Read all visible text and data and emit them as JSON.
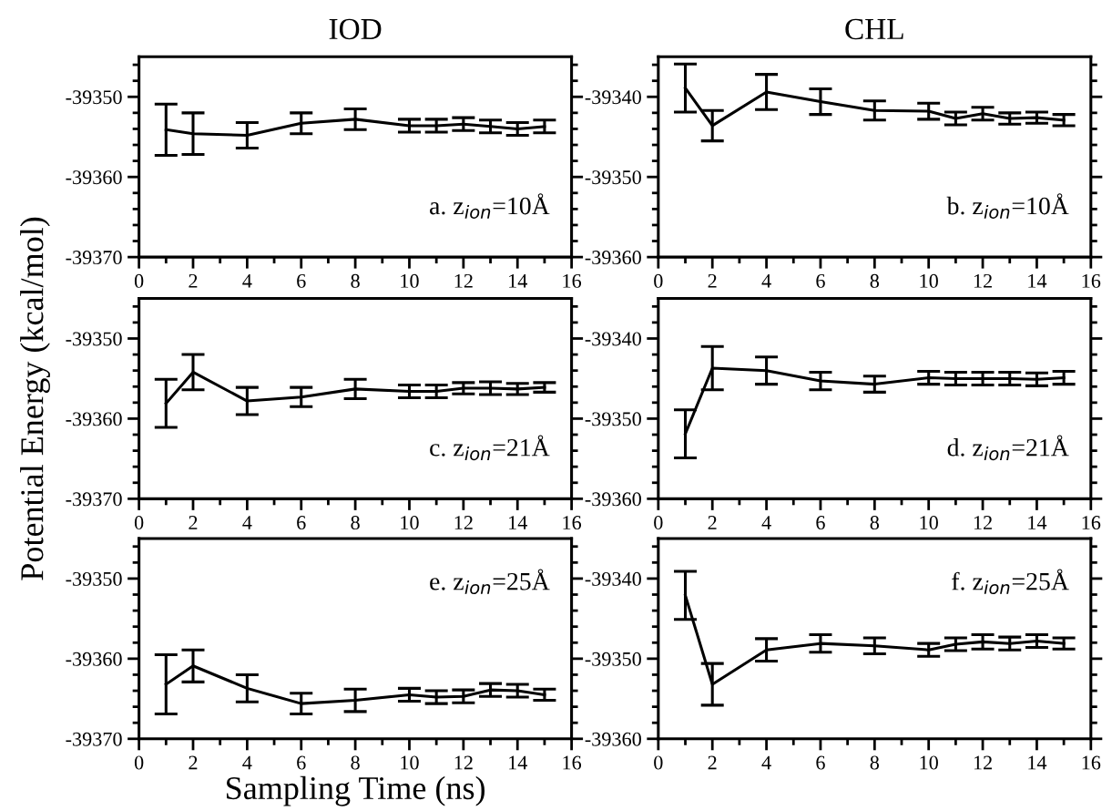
{
  "chart_data": [
    {
      "type": "line",
      "title": "IOD",
      "annotations": [
        "a. z$_{ion}$=10Å"
      ],
      "xlim": [
        0,
        16
      ],
      "ylim": [
        -39370,
        -39345
      ],
      "xticks": [
        0,
        {
          "value": 1,
          "label": null
        },
        2,
        {
          "value": 3,
          "label": null
        },
        4,
        {
          "value": 5,
          "label": null
        },
        6,
        {
          "value": 7,
          "label": null
        },
        8,
        {
          "value": 9,
          "label": null
        },
        10,
        {
          "value": 11,
          "label": null
        },
        12,
        {
          "value": 13,
          "label": null
        },
        14,
        {
          "value": 15,
          "label": null
        },
        16
      ],
      "yticks": [
        -39370,
        {
          "value": -39368,
          "label": null
        },
        {
          "value": -39366,
          "label": null
        },
        {
          "value": -39364,
          "label": null
        },
        {
          "value": -39362,
          "label": null
        },
        -39360,
        {
          "value": -39358,
          "label": null
        },
        {
          "value": -39356,
          "label": null
        },
        {
          "value": -39354,
          "label": null
        },
        {
          "value": -39352,
          "label": null
        },
        -39350,
        {
          "value": -39348,
          "label": null
        },
        {
          "value": -39346,
          "label": null
        }
      ],
      "grid": false,
      "legend": false,
      "marker": "none",
      "line_style": "solid",
      "x": [
        1,
        2,
        4,
        6,
        8,
        10,
        11,
        12,
        13,
        14,
        15
      ],
      "series": [
        {
          "color": "#000000",
          "values": [
            -39354.1,
            -39354.6,
            -39354.8,
            -39353.3,
            -39352.8,
            -39353.6,
            -39353.6,
            -39353.4,
            -39353.7,
            -39354.0,
            -39353.7
          ],
          "errors": [
            3.2,
            2.6,
            1.6,
            1.3,
            1.3,
            0.8,
            0.8,
            0.8,
            0.8,
            0.8,
            0.8
          ]
        }
      ]
    },
    {
      "type": "line",
      "title": "CHL",
      "annotations": [
        "b. z$_{ion}$=10Å"
      ],
      "xlim": [
        0,
        16
      ],
      "ylim": [
        -39360,
        -39335
      ],
      "xticks": [
        0,
        {
          "value": 1,
          "label": null
        },
        2,
        {
          "value": 3,
          "label": null
        },
        4,
        {
          "value": 5,
          "label": null
        },
        6,
        {
          "value": 7,
          "label": null
        },
        8,
        {
          "value": 9,
          "label": null
        },
        10,
        {
          "value": 11,
          "label": null
        },
        12,
        {
          "value": 13,
          "label": null
        },
        14,
        {
          "value": 15,
          "label": null
        },
        16
      ],
      "yticks": [
        -39360,
        {
          "value": -39358,
          "label": null
        },
        {
          "value": -39356,
          "label": null
        },
        {
          "value": -39354,
          "label": null
        },
        {
          "value": -39352,
          "label": null
        },
        -39350,
        {
          "value": -39348,
          "label": null
        },
        {
          "value": -39346,
          "label": null
        },
        {
          "value": -39344,
          "label": null
        },
        {
          "value": -39342,
          "label": null
        },
        -39340,
        {
          "value": -39338,
          "label": null
        },
        {
          "value": -39336,
          "label": null
        }
      ],
      "grid": false,
      "legend": false,
      "marker": "none",
      "line_style": "solid",
      "x": [
        1,
        2,
        4,
        6,
        8,
        10,
        11,
        12,
        13,
        14,
        15
      ],
      "series": [
        {
          "color": "#000000",
          "values": [
            -39338.9,
            -39343.6,
            -39339.4,
            -39340.6,
            -39341.7,
            -39341.8,
            -39342.7,
            -39342.1,
            -39342.7,
            -39342.6,
            -39342.9
          ],
          "errors": [
            3.0,
            1.9,
            2.2,
            1.6,
            1.2,
            1.0,
            0.8,
            0.8,
            0.7,
            0.7,
            0.7
          ]
        }
      ]
    },
    {
      "type": "line",
      "ylabel": "Potential Energy (kcal/mol)",
      "annotations": [
        "c. z$_{ion}$=21Å"
      ],
      "xlim": [
        0,
        16
      ],
      "ylim": [
        -39370,
        -39345
      ],
      "xticks": [
        0,
        {
          "value": 1,
          "label": null
        },
        2,
        {
          "value": 3,
          "label": null
        },
        4,
        {
          "value": 5,
          "label": null
        },
        6,
        {
          "value": 7,
          "label": null
        },
        8,
        {
          "value": 9,
          "label": null
        },
        10,
        {
          "value": 11,
          "label": null
        },
        12,
        {
          "value": 13,
          "label": null
        },
        14,
        {
          "value": 15,
          "label": null
        },
        16
      ],
      "yticks": [
        -39370,
        {
          "value": -39368,
          "label": null
        },
        {
          "value": -39366,
          "label": null
        },
        {
          "value": -39364,
          "label": null
        },
        {
          "value": -39362,
          "label": null
        },
        -39360,
        {
          "value": -39358,
          "label": null
        },
        {
          "value": -39356,
          "label": null
        },
        {
          "value": -39354,
          "label": null
        },
        {
          "value": -39352,
          "label": null
        },
        -39350,
        {
          "value": -39348,
          "label": null
        },
        {
          "value": -39346,
          "label": null
        }
      ],
      "grid": false,
      "legend": false,
      "marker": "none",
      "line_style": "solid",
      "x": [
        1,
        2,
        4,
        6,
        8,
        10,
        11,
        12,
        13,
        14,
        15
      ],
      "series": [
        {
          "color": "#000000",
          "values": [
            -39358.1,
            -39354.2,
            -39357.8,
            -39357.3,
            -39356.3,
            -39356.6,
            -39356.6,
            -39356.2,
            -39356.2,
            -39356.3,
            -39356.1
          ],
          "errors": [
            3.0,
            2.2,
            1.7,
            1.2,
            1.2,
            0.8,
            0.8,
            0.7,
            0.8,
            0.7,
            0.6
          ]
        }
      ]
    },
    {
      "type": "line",
      "annotations": [
        "d. z$_{ion}$=21Å"
      ],
      "xlim": [
        0,
        16
      ],
      "ylim": [
        -39360,
        -39335
      ],
      "xticks": [
        0,
        {
          "value": 1,
          "label": null
        },
        2,
        {
          "value": 3,
          "label": null
        },
        4,
        {
          "value": 5,
          "label": null
        },
        6,
        {
          "value": 7,
          "label": null
        },
        8,
        {
          "value": 9,
          "label": null
        },
        10,
        {
          "value": 11,
          "label": null
        },
        12,
        {
          "value": 13,
          "label": null
        },
        14,
        {
          "value": 15,
          "label": null
        },
        16
      ],
      "yticks": [
        -39360,
        {
          "value": -39358,
          "label": null
        },
        {
          "value": -39356,
          "label": null
        },
        {
          "value": -39354,
          "label": null
        },
        {
          "value": -39352,
          "label": null
        },
        -39350,
        {
          "value": -39348,
          "label": null
        },
        {
          "value": -39346,
          "label": null
        },
        {
          "value": -39344,
          "label": null
        },
        {
          "value": -39342,
          "label": null
        },
        -39340,
        {
          "value": -39338,
          "label": null
        },
        {
          "value": -39336,
          "label": null
        }
      ],
      "grid": false,
      "legend": false,
      "marker": "none",
      "line_style": "solid",
      "x": [
        1,
        2,
        4,
        6,
        8,
        10,
        11,
        12,
        13,
        14,
        15
      ],
      "series": [
        {
          "color": "#000000",
          "values": [
            -39351.9,
            -39343.7,
            -39344.0,
            -39345.3,
            -39345.7,
            -39344.9,
            -39345.0,
            -39345.0,
            -39345.0,
            -39345.1,
            -39344.9
          ],
          "errors": [
            3.0,
            2.7,
            1.7,
            1.1,
            1.0,
            0.8,
            0.8,
            0.8,
            0.8,
            0.8,
            0.8
          ]
        }
      ]
    },
    {
      "type": "line",
      "xlabel": "Sampling Time (ns)",
      "annotations": [
        "e. z$_{ion}$=25Å"
      ],
      "xlim": [
        0,
        16
      ],
      "ylim": [
        -39370,
        -39345
      ],
      "xticks": [
        0,
        {
          "value": 1,
          "label": null
        },
        2,
        {
          "value": 3,
          "label": null
        },
        4,
        {
          "value": 5,
          "label": null
        },
        6,
        {
          "value": 7,
          "label": null
        },
        8,
        {
          "value": 9,
          "label": null
        },
        10,
        {
          "value": 11,
          "label": null
        },
        12,
        {
          "value": 13,
          "label": null
        },
        14,
        {
          "value": 15,
          "label": null
        },
        16
      ],
      "yticks": [
        -39370,
        {
          "value": -39368,
          "label": null
        },
        {
          "value": -39366,
          "label": null
        },
        {
          "value": -39364,
          "label": null
        },
        {
          "value": -39362,
          "label": null
        },
        -39360,
        {
          "value": -39358,
          "label": null
        },
        {
          "value": -39356,
          "label": null
        },
        {
          "value": -39354,
          "label": null
        },
        {
          "value": -39352,
          "label": null
        },
        -39350,
        {
          "value": -39348,
          "label": null
        },
        {
          "value": -39346,
          "label": null
        }
      ],
      "grid": false,
      "legend": false,
      "marker": "none",
      "line_style": "solid",
      "x": [
        1,
        2,
        4,
        6,
        8,
        10,
        11,
        12,
        13,
        14,
        15
      ],
      "series": [
        {
          "color": "#000000",
          "values": [
            -39363.2,
            -39360.9,
            -39363.7,
            -39365.6,
            -39365.2,
            -39364.5,
            -39364.8,
            -39364.7,
            -39363.9,
            -39364.0,
            -39364.5
          ],
          "errors": [
            3.7,
            2.0,
            1.7,
            1.3,
            1.4,
            0.8,
            0.8,
            0.8,
            0.8,
            0.8,
            0.7
          ]
        }
      ]
    },
    {
      "type": "line",
      "annotations": [
        "f. z$_{ion}$=25Å"
      ],
      "xlim": [
        0,
        16
      ],
      "ylim": [
        -39360,
        -39335
      ],
      "xticks": [
        0,
        {
          "value": 1,
          "label": null
        },
        2,
        {
          "value": 3,
          "label": null
        },
        4,
        {
          "value": 5,
          "label": null
        },
        6,
        {
          "value": 7,
          "label": null
        },
        8,
        {
          "value": 9,
          "label": null
        },
        10,
        {
          "value": 11,
          "label": null
        },
        12,
        {
          "value": 13,
          "label": null
        },
        14,
        {
          "value": 15,
          "label": null
        },
        16
      ],
      "yticks": [
        -39360,
        {
          "value": -39358,
          "label": null
        },
        {
          "value": -39356,
          "label": null
        },
        {
          "value": -39354,
          "label": null
        },
        {
          "value": -39352,
          "label": null
        },
        -39350,
        {
          "value": -39348,
          "label": null
        },
        {
          "value": -39346,
          "label": null
        },
        {
          "value": -39344,
          "label": null
        },
        {
          "value": -39342,
          "label": null
        },
        -39340,
        {
          "value": -39338,
          "label": null
        },
        {
          "value": -39336,
          "label": null
        }
      ],
      "grid": false,
      "legend": false,
      "marker": "none",
      "line_style": "solid",
      "x": [
        1,
        2,
        4,
        6,
        8,
        10,
        11,
        12,
        13,
        14,
        15
      ],
      "series": [
        {
          "color": "#000000",
          "values": [
            -39342.1,
            -39353.2,
            -39348.9,
            -39348.1,
            -39348.4,
            -39348.9,
            -39348.2,
            -39347.9,
            -39348.1,
            -39347.8,
            -39348.1
          ],
          "errors": [
            3.0,
            2.6,
            1.4,
            1.1,
            1.0,
            0.8,
            0.8,
            0.9,
            0.8,
            0.8,
            0.7
          ]
        }
      ]
    }
  ]
}
